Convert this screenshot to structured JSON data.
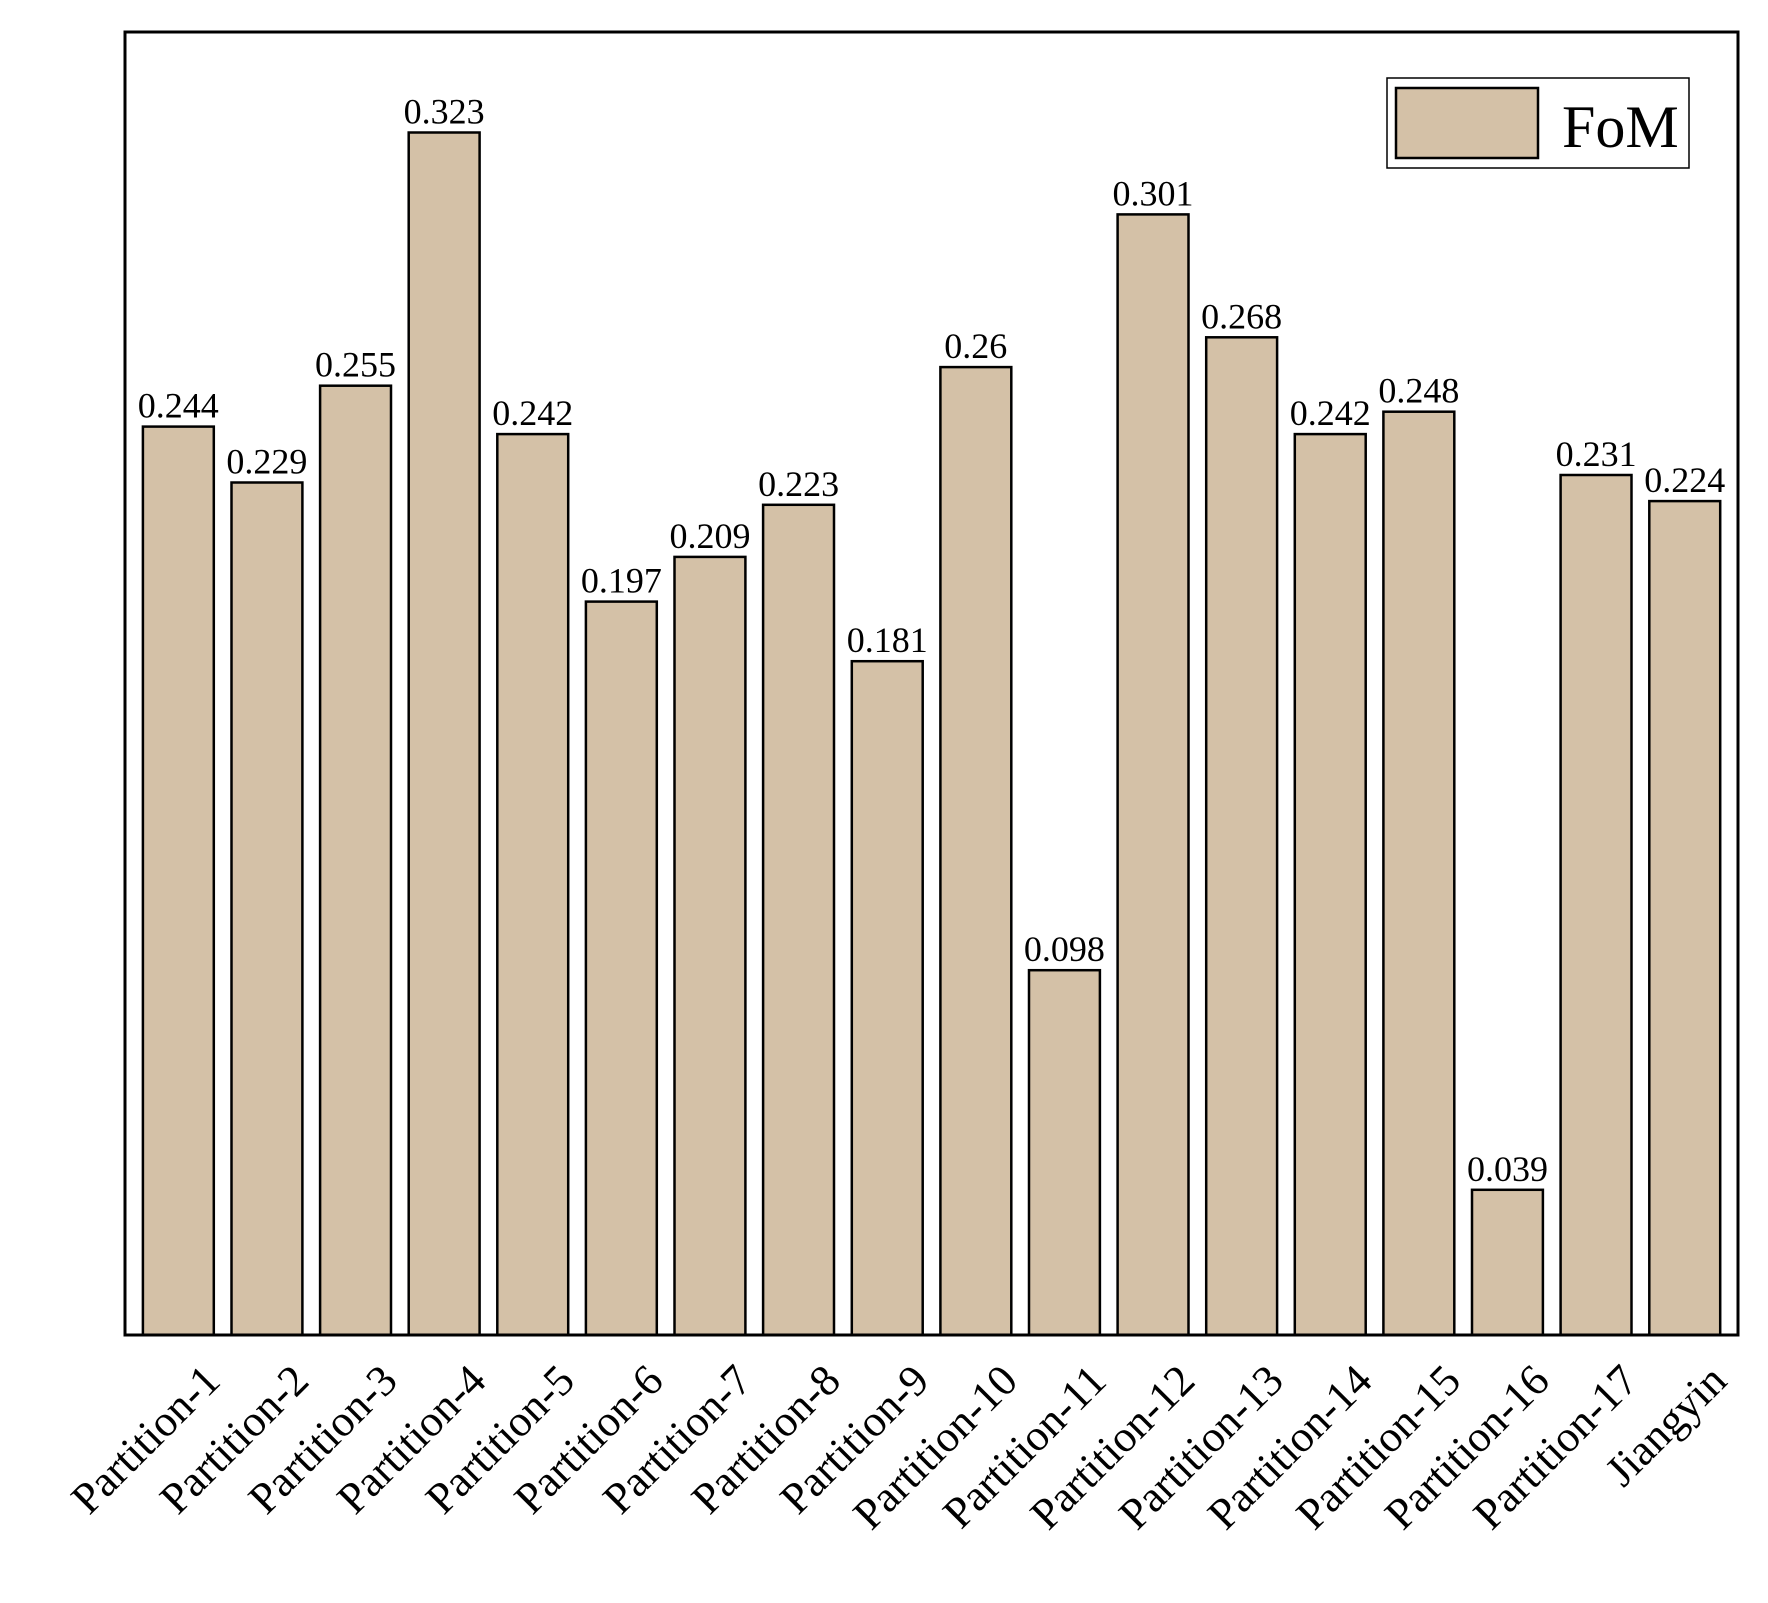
{
  "chart_data": {
    "type": "bar",
    "categories": [
      "Partition-1",
      "Partition-2",
      "Partition-3",
      "Partition-4",
      "Partition-5",
      "Partition-6",
      "Partition-7",
      "Partition-8",
      "Partition-9",
      "Partition-10",
      "Partition-11",
      "Partition-12",
      "Partition-13",
      "Partition-14",
      "Partition-15",
      "Partition-16",
      "Partition-17",
      "Jiangyin"
    ],
    "series": [
      {
        "name": "FoM",
        "values": [
          0.244,
          0.229,
          0.255,
          0.323,
          0.242,
          0.197,
          0.209,
          0.223,
          0.181,
          0.26,
          0.098,
          0.301,
          0.268,
          0.242,
          0.248,
          0.039,
          0.231,
          0.224
        ],
        "value_labels": [
          "0.244",
          "0.229",
          "0.255",
          "0.323",
          "0.242",
          "0.197",
          "0.209",
          "0.223",
          "0.181",
          "0.26",
          "0.098",
          "0.301",
          "0.268",
          "0.242",
          "0.248",
          "0.039",
          "0.231",
          "0.224"
        ],
        "color": "#d4c1a7"
      }
    ],
    "title": "",
    "xlabel": "",
    "ylabel": "",
    "ylim": [
      0,
      0.35
    ],
    "grid": false,
    "legend_position": "top-right",
    "y_axis_ticks_shown": false,
    "edge_color": "#000000"
  }
}
